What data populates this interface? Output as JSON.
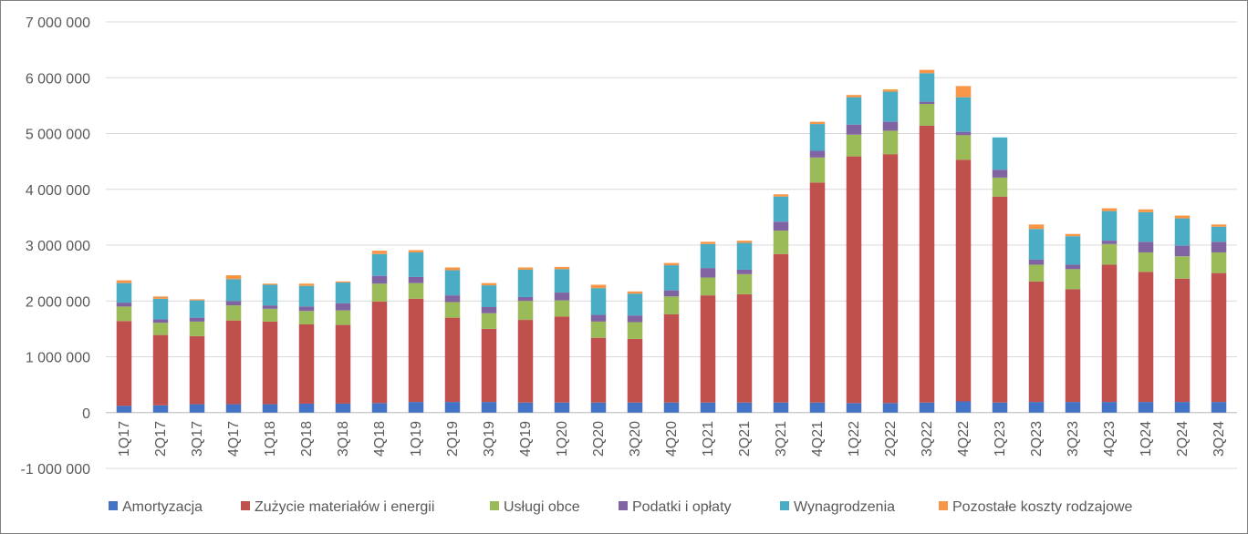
{
  "chart_data": {
    "type": "bar",
    "stacked": true,
    "title": "",
    "xlabel": "",
    "ylabel": "",
    "ylim": [
      -1000000,
      7000000
    ],
    "yticks": [
      -1000000,
      0,
      1000000,
      2000000,
      3000000,
      4000000,
      5000000,
      6000000,
      7000000
    ],
    "ytick_labels": [
      "-1 000 000",
      "0",
      "1 000 000",
      "2 000 000",
      "3 000 000",
      "4 000 000",
      "5 000 000",
      "6 000 000",
      "7 000 000"
    ],
    "grid": "horizontal",
    "legend_position": "bottom",
    "categories": [
      "1Q17",
      "2Q17",
      "3Q17",
      "4Q17",
      "1Q18",
      "2Q18",
      "3Q18",
      "4Q18",
      "1Q19",
      "2Q19",
      "3Q19",
      "4Q19",
      "1Q20",
      "2Q20",
      "3Q20",
      "4Q20",
      "1Q21",
      "2Q21",
      "3Q21",
      "4Q21",
      "1Q22",
      "2Q22",
      "3Q22",
      "4Q22",
      "1Q23",
      "2Q23",
      "3Q23",
      "4Q23",
      "1Q24",
      "2Q24",
      "3Q24"
    ],
    "series": [
      {
        "name": "Amortyzacja",
        "color": "#4472C4",
        "values": [
          120000,
          130000,
          150000,
          150000,
          150000,
          160000,
          160000,
          170000,
          190000,
          190000,
          190000,
          180000,
          180000,
          180000,
          180000,
          180000,
          180000,
          180000,
          180000,
          180000,
          170000,
          170000,
          180000,
          200000,
          180000,
          190000,
          190000,
          190000,
          190000,
          190000,
          190000
        ]
      },
      {
        "name": "Zużycie materiałów i energii",
        "color": "#C0504D",
        "values": [
          1520000,
          1260000,
          1220000,
          1500000,
          1480000,
          1420000,
          1410000,
          1820000,
          1850000,
          1510000,
          1310000,
          1480000,
          1540000,
          1160000,
          1140000,
          1580000,
          1920000,
          1940000,
          2660000,
          3940000,
          4420000,
          4460000,
          4960000,
          4330000,
          3690000,
          2160000,
          2020000,
          2460000,
          2330000,
          2210000,
          2310000
        ]
      },
      {
        "name": "Usługi obce",
        "color": "#9BBB59",
        "values": [
          260000,
          220000,
          260000,
          270000,
          230000,
          240000,
          260000,
          320000,
          280000,
          280000,
          280000,
          340000,
          290000,
          290000,
          300000,
          320000,
          320000,
          360000,
          420000,
          450000,
          390000,
          420000,
          390000,
          440000,
          340000,
          300000,
          360000,
          370000,
          350000,
          400000,
          370000
        ]
      },
      {
        "name": "Podatki i opłaty",
        "color": "#8064A2",
        "values": [
          70000,
          60000,
          70000,
          80000,
          60000,
          80000,
          130000,
          140000,
          110000,
          120000,
          110000,
          70000,
          140000,
          120000,
          120000,
          110000,
          170000,
          80000,
          160000,
          120000,
          180000,
          160000,
          40000,
          60000,
          140000,
          90000,
          80000,
          60000,
          190000,
          190000,
          190000
        ]
      },
      {
        "name": "Wynagrodzenia",
        "color": "#4BACC6",
        "values": [
          350000,
          370000,
          310000,
          390000,
          370000,
          370000,
          370000,
          390000,
          440000,
          450000,
          390000,
          490000,
          420000,
          480000,
          390000,
          450000,
          430000,
          480000,
          450000,
          480000,
          490000,
          540000,
          510000,
          620000,
          580000,
          550000,
          510000,
          530000,
          530000,
          490000,
          270000
        ]
      },
      {
        "name": "Pozostałe koszty rodzajowe",
        "color": "#F79646",
        "values": [
          50000,
          40000,
          20000,
          70000,
          20000,
          40000,
          20000,
          60000,
          40000,
          50000,
          40000,
          40000,
          40000,
          60000,
          40000,
          40000,
          40000,
          40000,
          40000,
          40000,
          40000,
          40000,
          60000,
          200000,
          0,
          80000,
          40000,
          50000,
          50000,
          50000,
          40000
        ]
      }
    ]
  }
}
